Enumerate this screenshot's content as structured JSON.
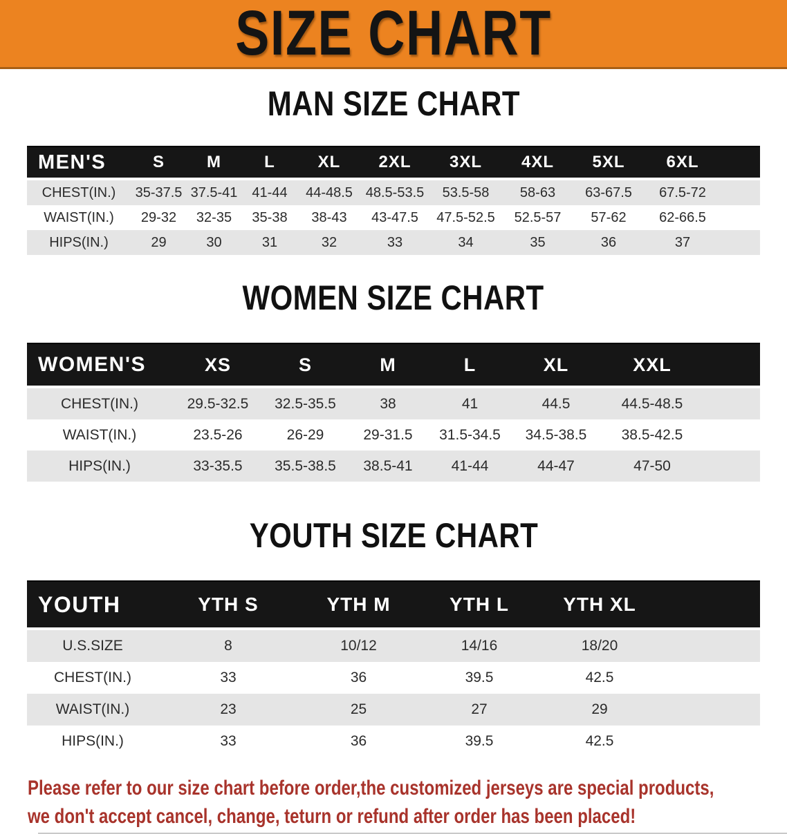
{
  "banner": {
    "title": "SIZE CHART"
  },
  "colors": {
    "banner_bg": "#ec8320",
    "header_bar": "#161616",
    "row_stripe": "#e5e5e5",
    "disclaimer_text": "#a8332b"
  },
  "sections": [
    {
      "id": "men",
      "title": "MAN SIZE CHART",
      "table": {
        "header": [
          "MEN'S",
          "S",
          "M",
          "L",
          "XL",
          "2XL",
          "3XL",
          "4XL",
          "5XL",
          "6XL"
        ],
        "rows": [
          [
            "CHEST(IN.)",
            "35-37.5",
            "37.5-41",
            "41-44",
            "44-48.5",
            "48.5-53.5",
            "53.5-58",
            "58-63",
            "63-67.5",
            "67.5-72"
          ],
          [
            "WAIST(IN.)",
            "29-32",
            "32-35",
            "35-38",
            "38-43",
            "43-47.5",
            "47.5-52.5",
            "52.5-57",
            "57-62",
            "62-66.5"
          ],
          [
            "HIPS(IN.)",
            "29",
            "30",
            "31",
            "32",
            "33",
            "34",
            "35",
            "36",
            "37"
          ]
        ]
      }
    },
    {
      "id": "women",
      "title": "WOMEN SIZE CHART",
      "table": {
        "header": [
          "WOMEN'S",
          "XS",
          "S",
          "M",
          "L",
          "XL",
          "XXL"
        ],
        "rows": [
          [
            "CHEST(IN.)",
            "29.5-32.5",
            "32.5-35.5",
            "38",
            "41",
            "44.5",
            "44.5-48.5"
          ],
          [
            "WAIST(IN.)",
            "23.5-26",
            "26-29",
            "29-31.5",
            "31.5-34.5",
            "34.5-38.5",
            "38.5-42.5"
          ],
          [
            "HIPS(IN.)",
            "33-35.5",
            "35.5-38.5",
            "38.5-41",
            "41-44",
            "44-47",
            "47-50"
          ]
        ]
      }
    },
    {
      "id": "youth",
      "title": "YOUTH SIZE CHART",
      "table": {
        "header": [
          "YOUTH",
          "YTH S",
          "YTH M",
          "YTH L",
          "YTH XL"
        ],
        "rows": [
          [
            "U.S.SIZE",
            "8",
            "10/12",
            "14/16",
            "18/20"
          ],
          [
            "CHEST(IN.)",
            "33",
            "36",
            "39.5",
            "42.5"
          ],
          [
            "WAIST(IN.)",
            "23",
            "25",
            "27",
            "29"
          ],
          [
            "HIPS(IN.)",
            "33",
            "36",
            "39.5",
            "42.5"
          ]
        ]
      }
    }
  ],
  "disclaimer": {
    "line1": "Please refer to our size chart before order,the customized jerseys are special products,",
    "line2": "we don't accept cancel, change, teturn or refund after order has been placed!"
  }
}
